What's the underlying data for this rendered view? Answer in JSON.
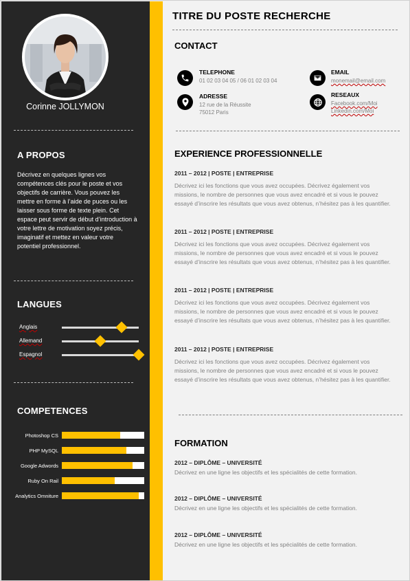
{
  "profile": {
    "name": "Corinne JOLLYMON",
    "about_heading": "A PROPOS",
    "about_text": "Décrivez en quelques lignes vos compétences clés pour le poste et vos objectifs de carrière. Vous pouvez les mettre en forme à l’aide de puces ou les laisser sous forme de texte plein. Cet espace peut servir de début d’introduction à votre lettre de motivation soyez précis, imaginatif et mettez en valeur votre potentiel professionnel."
  },
  "languages": {
    "heading": "LANGUES",
    "items": [
      {
        "label": "Anglais",
        "level": 0.78
      },
      {
        "label": "Allemand",
        "level": 0.5
      },
      {
        "label": "Espagnol",
        "level": 1.0
      }
    ]
  },
  "skills": {
    "heading": "COMPETENCES",
    "items": [
      {
        "label": "Photoshop CS",
        "level": 0.71
      },
      {
        "label": "PHP MySQL",
        "level": 0.78
      },
      {
        "label": "Google Adwords",
        "level": 0.86
      },
      {
        "label": "Ruby On Rail",
        "level": 0.64
      },
      {
        "label": "Analytics Omniture",
        "level": 0.93
      }
    ]
  },
  "colors": {
    "accent": "#ffc000",
    "sidebar": "#262626"
  },
  "main": {
    "title": "TITRE DU POSTE RECHERCHE",
    "contact": {
      "heading": "CONTACT",
      "phone_label": "TELEPHONE",
      "phone_value": "01 02 03 04 05 / 06 01 02 03 04",
      "email_label": "EMAIL",
      "email_value": "monemail@email.com",
      "address_label": "ADRESSE",
      "address_line1": "12 rue de la Réussite",
      "address_line2": "75012 Paris",
      "social_label": "RESEAUX",
      "social_line1": "Facebook.com/Moi",
      "social_line2": "Linkedin.com/Moi"
    },
    "experience": {
      "heading": "EXPERIENCE PROFESSIONNELLE",
      "items": [
        {
          "title": "2011 – 2012 | POSTE | ENTREPRISE",
          "desc": "Décrivez ici les fonctions que vous avez occupées. Décrivez également vos missions, le nombre de personnes que vous avez encadré et si vous le pouvez essayé d’inscrire les résultats que vous avez obtenus, n’hésitez pas à les quantifier."
        },
        {
          "title": "2011 – 2012 | POSTE | ENTREPRISE",
          "desc": "Décrivez ici les fonctions que vous avez occupées. Décrivez également vos missions, le nombre de personnes que vous avez encadré et si vous le pouvez essayé d’inscrire les résultats que vous avez obtenus, n’hésitez pas à les quantifier."
        },
        {
          "title": "2011 – 2012 | POSTE | ENTREPRISE",
          "desc": "Décrivez ici les fonctions que vous avez occupées. Décrivez également vos missions, le nombre de personnes que vous avez encadré et si vous le pouvez essayé d’inscrire les résultats que vous avez obtenus, n’hésitez pas à les quantifier."
        },
        {
          "title": "2011 – 2012 | POSTE | ENTREPRISE",
          "desc": "Décrivez ici les fonctions que vous avez occupées. Décrivez également vos missions, le nombre de personnes que vous avez encadré et si vous le pouvez essayé d’inscrire les résultats que vous avez obtenus, n’hésitez pas à les quantifier."
        }
      ]
    },
    "education": {
      "heading": "FORMATION",
      "items": [
        {
          "title": "2012 – DIPLÔME – UNIVERSITÉ",
          "desc": "Décrivez en une ligne les objectifs et les spécialités de cette formation."
        },
        {
          "title": "2012 – DIPLÔME – UNIVERSITÉ",
          "desc": "Décrivez en une ligne les objectifs et les spécialités de cette formation."
        },
        {
          "title": "2012 – DIPLÔME – UNIVERSITÉ",
          "desc": "Décrivez en une ligne les objectifs et les spécialités de cette formation."
        }
      ]
    }
  }
}
